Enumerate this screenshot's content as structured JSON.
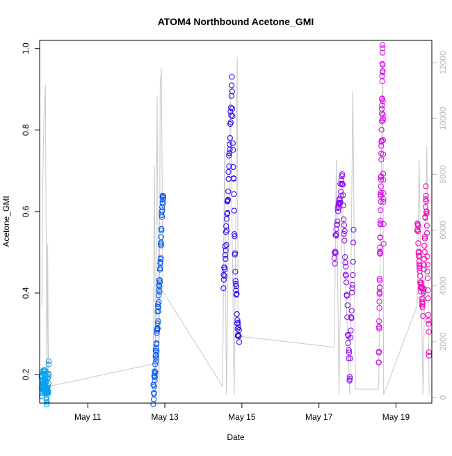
{
  "chart_data": {
    "type": "scatter",
    "title": "ATOM4 Northbound Acetone_GMI",
    "xlabel": "Date",
    "ylabel": "Acetone_GMI",
    "x_axis": {
      "unit": "days since May 10",
      "range": [
        9.75,
        19.93
      ],
      "ticks": [
        {
          "label": "May 11",
          "value": 11
        },
        {
          "label": "May 13",
          "value": 13
        },
        {
          "label": "May 15",
          "value": 15
        },
        {
          "label": "May 17",
          "value": 17
        },
        {
          "label": "May 19",
          "value": 19
        }
      ]
    },
    "y_axis_left": {
      "range": [
        0.13,
        1.02
      ],
      "ticks": [
        {
          "label": "0.2",
          "value": 0.2
        },
        {
          "label": "0.4",
          "value": 0.4
        },
        {
          "label": "0.6",
          "value": 0.6
        },
        {
          "label": "0.8",
          "value": 0.8
        },
        {
          "label": "1.0",
          "value": 1.0
        }
      ]
    },
    "y_axis_right": {
      "range": [
        -200,
        12800
      ],
      "color": "#b8b8b8",
      "ticks": [
        {
          "label": "0",
          "value": 0
        },
        {
          "label": "2000",
          "value": 2000
        },
        {
          "label": "4000",
          "value": 4000
        },
        {
          "label": "6000",
          "value": 6000
        },
        {
          "label": "8000",
          "value": 8000
        },
        {
          "label": "10000",
          "value": 10000
        },
        {
          "label": "12000",
          "value": 12000
        }
      ]
    },
    "altitude_trace_color": "#c8c8c8",
    "altitude_trace": [
      [
        9.81,
        3300
      ],
      [
        9.83,
        7500
      ],
      [
        9.86,
        10000
      ],
      [
        9.9,
        11200
      ],
      [
        9.94,
        100
      ],
      [
        9.96,
        5500
      ],
      [
        9.98,
        400
      ],
      [
        12.7,
        1200
      ],
      [
        12.73,
        8300
      ],
      [
        12.76,
        100
      ],
      [
        12.8,
        10800
      ],
      [
        12.85,
        100
      ],
      [
        12.88,
        11300
      ],
      [
        12.91,
        11800
      ],
      [
        12.95,
        3800
      ],
      [
        14.5,
        400
      ],
      [
        14.55,
        9000
      ],
      [
        14.6,
        100
      ],
      [
        14.7,
        11000
      ],
      [
        14.8,
        100
      ],
      [
        14.88,
        12200
      ],
      [
        14.9,
        2200
      ],
      [
        17.4,
        1800
      ],
      [
        17.45,
        8500
      ],
      [
        17.52,
        100
      ],
      [
        17.6,
        7500
      ],
      [
        17.8,
        100
      ],
      [
        17.88,
        11000
      ],
      [
        17.95,
        300
      ],
      [
        18.55,
        300
      ],
      [
        18.6,
        6500
      ],
      [
        18.66,
        12000
      ],
      [
        18.68,
        100
      ],
      [
        19.55,
        3300
      ],
      [
        19.6,
        8500
      ],
      [
        19.7,
        100
      ],
      [
        19.8,
        9000
      ],
      [
        19.86,
        100
      ]
    ],
    "series": [
      {
        "color": "#0aa0f0",
        "x_start": 9.8,
        "x_end": 9.99,
        "points": [
          [
            9.8,
            0.17
          ],
          [
            9.85,
            0.19
          ],
          [
            9.9,
            0.18
          ],
          [
            9.95,
            0.14
          ],
          [
            9.99,
            0.21
          ]
        ]
      },
      {
        "color": "#0a5af0",
        "x_start": 12.7,
        "x_end": 12.96,
        "points": [
          [
            12.7,
            0.15
          ],
          [
            12.75,
            0.22
          ],
          [
            12.8,
            0.31
          ],
          [
            12.85,
            0.4
          ],
          [
            12.9,
            0.52
          ],
          [
            12.93,
            0.62
          ]
        ]
      },
      {
        "color": "#2c0af0",
        "x_start": 14.52,
        "x_end": 14.93,
        "points": [
          [
            14.52,
            0.42
          ],
          [
            14.6,
            0.55
          ],
          [
            14.68,
            0.76
          ],
          [
            14.74,
            0.91
          ],
          [
            14.82,
            0.48
          ],
          [
            14.9,
            0.3
          ]
        ]
      },
      {
        "color": "#8c0af0",
        "x_start": 17.4,
        "x_end": 17.9,
        "points": [
          [
            17.4,
            0.48
          ],
          [
            17.5,
            0.61
          ],
          [
            17.6,
            0.68
          ],
          [
            17.7,
            0.45
          ],
          [
            17.8,
            0.19
          ],
          [
            17.9,
            0.55
          ]
        ]
      },
      {
        "color": "#d80af0",
        "x_start": 18.55,
        "x_end": 18.68,
        "points": [
          [
            18.55,
            0.21
          ],
          [
            18.6,
            0.62
          ],
          [
            18.63,
            0.82
          ],
          [
            18.65,
            1.0
          ],
          [
            18.68,
            0.55
          ]
        ]
      },
      {
        "color": "#f00ac0",
        "x_start": 19.55,
        "x_end": 19.86,
        "points": [
          [
            19.55,
            0.58
          ],
          [
            19.62,
            0.45
          ],
          [
            19.7,
            0.36
          ],
          [
            19.78,
            0.66
          ],
          [
            19.86,
            0.25
          ]
        ]
      }
    ],
    "grid": false,
    "legend": "none"
  }
}
